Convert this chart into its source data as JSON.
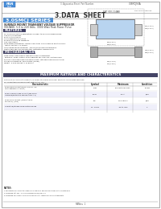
{
  "title": "3.DATA  SHEET",
  "series_title": "3.0SMCJ SERIES",
  "series_title_bg": "#4a90d9",
  "bg_color": "#ffffff",
  "border_color": "#888888",
  "logo_text": "PANtou",
  "doc_ref": "3.0SMCJ9.0A",
  "subtitle1": "SURFACE MOUNT TRANSIENT VOLTAGE SUPPRESSOR",
  "subtitle2": "VOLTAGE: 5.0 to 220 Volts  3000 Watt Peak Power Pulse",
  "features_title": "FEATURES",
  "features_lines": [
    "For surface mounted applications in order to minimize board space.",
    "Low-profile package",
    "Built-in strain relief",
    "Glass passivated junction",
    "Excellent clamping capability",
    "Low inductance",
    "Peak power dissipation: typically less than 1 microsecond and to 85%Vc",
    "Typical junction: 1.4 picoFd",
    "High temperature soldering:  260 50/10 seconds at terminals",
    "Plastic package has Underwriters Laboratory Flammability",
    "Classification 94V-0"
  ],
  "mech_title": "MECHANICAL DATA",
  "mech_lines": [
    "Case: JEDEC SMC plastic case with epoxy encapsulant",
    "Terminals: Solder plated, solderable per MIL-STD-750, Method 2026",
    "Polarity: Color band denotes positive end; cathode-anode Bidirectional",
    "Standard Packaging: 2000 pieces (TR,JRT)",
    "Weight: 0.049 ounces; 0.14 grams"
  ],
  "table_title": "MAXIMUM RATINGS AND CHARACTERISTICS",
  "table_note1": "Rating at 25 Ambient temperature unless otherwise specified. Positivity is indicated face side.",
  "table_note2": "For capacitance measurement subtract by 10%.",
  "diode_bg": "#b8d4f0",
  "diode_border": "#555555",
  "footer_text": "PANtou  1"
}
